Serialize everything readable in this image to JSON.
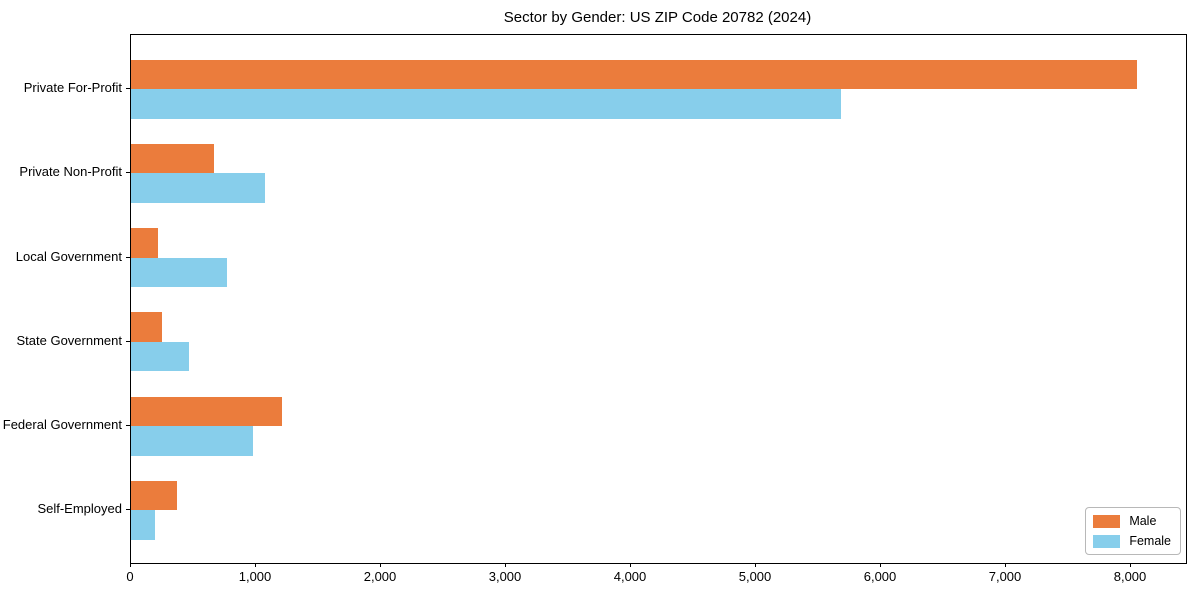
{
  "chart_data": {
    "type": "bar",
    "orientation": "horizontal",
    "title": "Sector by Gender: US ZIP Code 20782 (2024)",
    "categories": [
      "Private For-Profit",
      "Private Non-Profit",
      "Local Government",
      "State Government",
      "Federal Government",
      "Self-Employed"
    ],
    "series": [
      {
        "name": "Male",
        "color": "#EB7C3C",
        "values": [
          8050,
          660,
          215,
          250,
          1205,
          370
        ]
      },
      {
        "name": "Female",
        "color": "#87CEEB",
        "values": [
          5680,
          1070,
          765,
          460,
          975,
          190
        ]
      }
    ],
    "xlabel": "",
    "ylabel": "",
    "xlim": [
      0,
      8440
    ],
    "x_ticks": [
      0,
      1000,
      2000,
      3000,
      4000,
      5000,
      6000,
      7000,
      8000
    ],
    "x_tick_labels": [
      "0",
      "1,000",
      "2,000",
      "3,000",
      "4,000",
      "5,000",
      "6,000",
      "7,000",
      "8,000"
    ],
    "grid": false,
    "legend": {
      "position": "lower right"
    },
    "axis_color": "#000000"
  }
}
